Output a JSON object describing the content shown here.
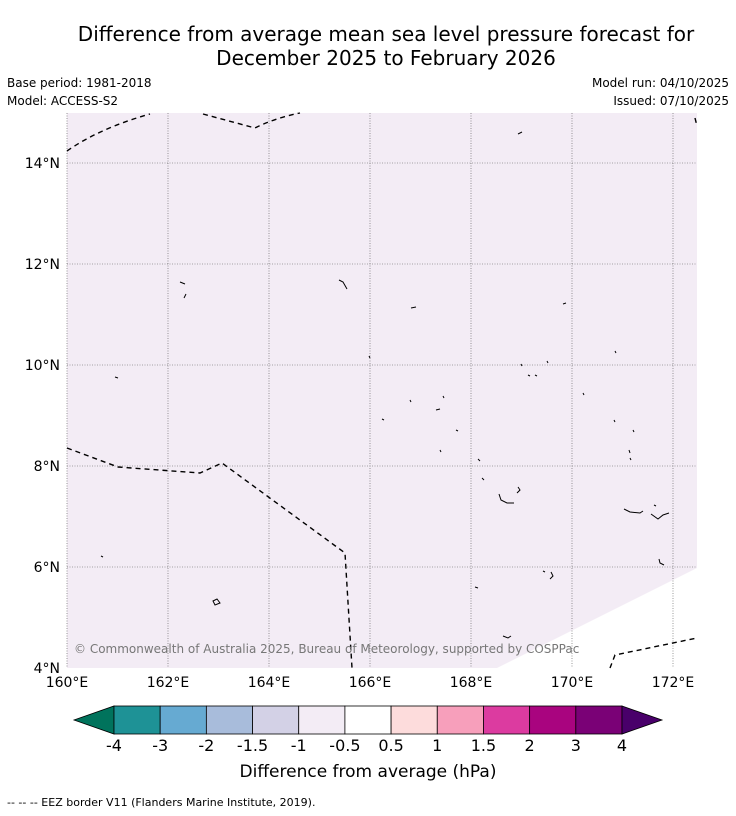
{
  "header": {
    "title_line1": "Difference from average mean sea level pressure forecast for",
    "title_line2": "December 2025 to February 2026",
    "base_period": "Base period: 1981-2018",
    "model": "Model: ACCESS-S2",
    "model_run": "Model run: 04/10/2025",
    "issued": "Issued: 07/10/2025"
  },
  "map": {
    "lat_labels": [
      "14°N",
      "12°N",
      "10°N",
      "8°N",
      "6°N",
      "4°N"
    ],
    "lon_labels": [
      "160°E",
      "162°E",
      "164°E",
      "166°E",
      "168°E",
      "170°E",
      "172°E"
    ],
    "copyright": "© Commonwealth of Australia 2025, Bureau of Meteorology, supported by COSPPac",
    "anomaly_fill_color": "#f3ecf5",
    "no_data_color": "#ffffff"
  },
  "colorbar": {
    "label": "Difference from average (hPa)",
    "ticks": [
      "-4",
      "-3",
      "-2",
      "-1.5",
      "-1",
      "-0.5",
      "0.5",
      "1",
      "1.5",
      "2",
      "3",
      "4"
    ],
    "colors": [
      "#00735c",
      "#1e9296",
      "#66aad2",
      "#a8bcdb",
      "#d3d1e6",
      "#f3ecf5",
      "#ffffff",
      "#fddcdc",
      "#f79fbb",
      "#dc3ba0",
      "#a9047f",
      "#7a0176",
      "#49006a"
    ]
  },
  "footer": {
    "legend_text": "--  --  -- EEZ border V11 (Flanders Marine Institute, 2019)."
  }
}
